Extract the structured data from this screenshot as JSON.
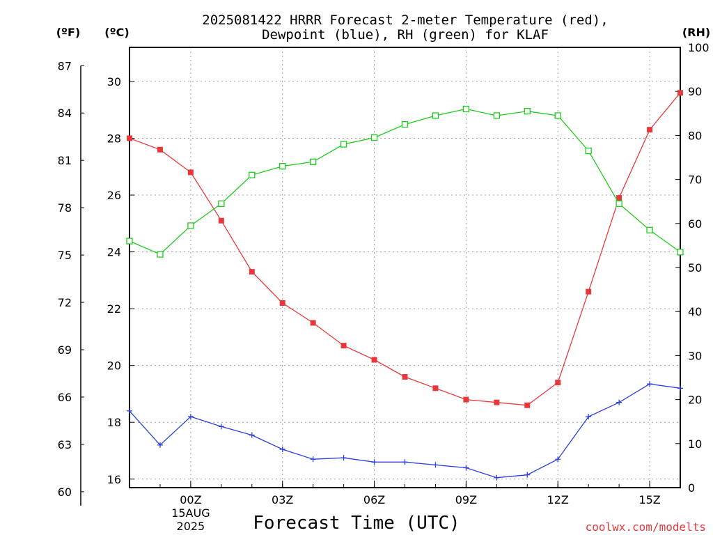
{
  "chart_data": {
    "type": "line",
    "title_line1": "2025081422 HRRR Forecast 2-meter Temperature (red),",
    "title_line2": "Dewpoint (blue), RH (green) for KLAF",
    "xlabel": "Forecast Time (UTC)",
    "credit": "coolwx.com/modelts",
    "units": {
      "fahrenheit": "(ºF)",
      "celsius": "(ºC)",
      "rh": "(RH)"
    },
    "x_hours_utc": [
      -2,
      -1,
      0,
      1,
      2,
      3,
      4,
      5,
      6,
      7,
      8,
      9,
      10,
      11,
      12,
      13,
      14,
      15,
      16
    ],
    "x_ticks": [
      {
        "hour": 0,
        "label": "00Z",
        "sub1": "15AUG",
        "sub2": "2025"
      },
      {
        "hour": 3,
        "label": "03Z"
      },
      {
        "hour": 6,
        "label": "06Z"
      },
      {
        "hour": 9,
        "label": "09Z"
      },
      {
        "hour": 12,
        "label": "12Z"
      },
      {
        "hour": 15,
        "label": "15Z"
      }
    ],
    "celsius_axis": {
      "range": [
        15.7,
        31.2
      ],
      "ticks": [
        16,
        18,
        20,
        22,
        24,
        26,
        28,
        30
      ]
    },
    "fahrenheit_axis": {
      "ticks": [
        60,
        63,
        66,
        69,
        72,
        75,
        78,
        81,
        84,
        87
      ]
    },
    "rh_axis": {
      "range": [
        0,
        100
      ],
      "ticks": [
        0,
        10,
        20,
        30,
        40,
        50,
        60,
        70,
        80,
        90,
        100
      ]
    },
    "series": [
      {
        "key": "temperature",
        "units": "C",
        "color": "#e8383b",
        "values": [
          28.0,
          27.6,
          26.8,
          25.1,
          23.3,
          22.2,
          21.5,
          20.7,
          20.2,
          19.6,
          19.2,
          18.8,
          18.7,
          18.6,
          19.4,
          22.6,
          25.9,
          28.3,
          29.6
        ]
      },
      {
        "key": "dewpoint",
        "units": "C",
        "color": "#2b3fe0",
        "values": [
          18.4,
          17.2,
          18.2,
          17.85,
          17.55,
          17.05,
          16.7,
          16.75,
          16.6,
          16.6,
          16.5,
          16.4,
          16.05,
          16.15,
          16.7,
          18.2,
          18.7,
          19.35,
          19.2
        ]
      },
      {
        "key": "rh",
        "units": "%",
        "color": "#1ecc1e",
        "values": [
          56,
          53,
          59.5,
          64.5,
          71,
          73,
          74,
          78,
          79.5,
          82.5,
          84.5,
          86,
          84.5,
          85.5,
          84.5,
          76.5,
          64.5,
          58.5,
          53.5
        ]
      }
    ]
  }
}
